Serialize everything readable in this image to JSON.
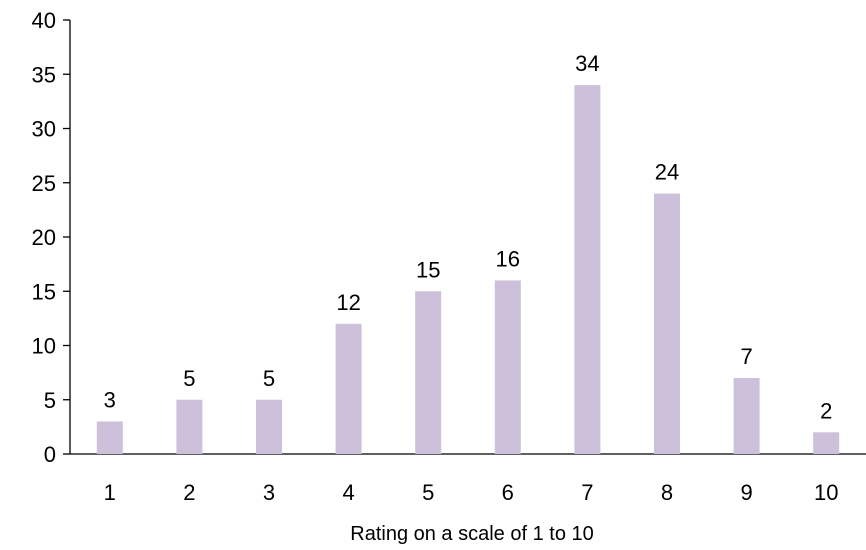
{
  "chart_data": {
    "type": "bar",
    "title": "",
    "xlabel": "Rating on a scale of 1 to 10",
    "ylabel": "",
    "categories": [
      "1",
      "2",
      "3",
      "4",
      "5",
      "6",
      "7",
      "8",
      "9",
      "10"
    ],
    "values": [
      3,
      5,
      5,
      12,
      15,
      16,
      34,
      24,
      7,
      2
    ],
    "data_labels": [
      "3",
      "5",
      "5",
      "12",
      "15",
      "16",
      "34",
      "24",
      "7",
      "2"
    ],
    "ylim": [
      0,
      40
    ],
    "yticks": [
      0,
      5,
      10,
      15,
      20,
      25,
      30,
      35,
      40
    ],
    "ytick_labels": [
      "0",
      "5",
      "10",
      "15",
      "20",
      "25",
      "30",
      "35",
      "40"
    ],
    "grid": false,
    "legend": "none",
    "bar_color": "#ccc0da"
  }
}
